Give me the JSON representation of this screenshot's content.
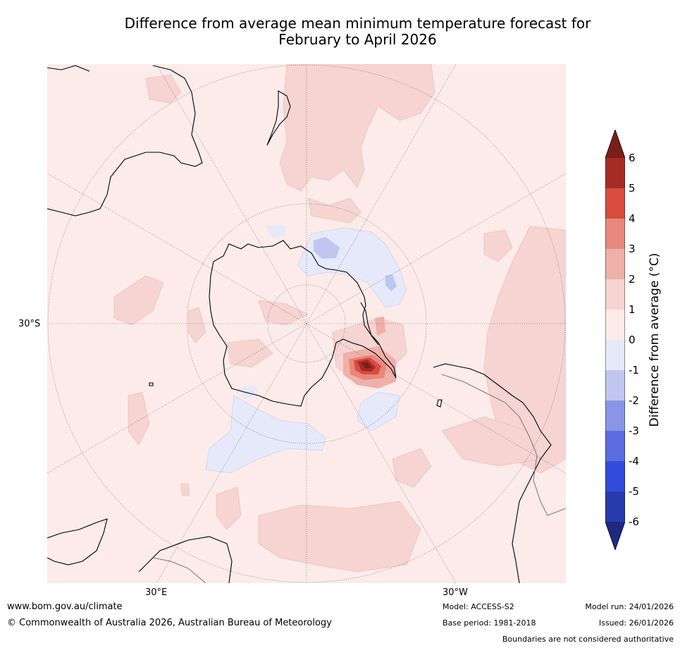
{
  "title": {
    "line1": "Difference from average mean minimum temperature forecast for",
    "line2": "February to April 2026"
  },
  "map": {
    "lat_label": "30°S",
    "lon_labels": [
      "30°E",
      "30°W"
    ],
    "projection": "south-polar-stereographic"
  },
  "colorbar": {
    "label": "Difference from average (°C)",
    "ticks": [
      "6",
      "5",
      "4",
      "3",
      "2",
      "1",
      "0",
      "-1",
      "-2",
      "-3",
      "-4",
      "-5",
      "-6"
    ],
    "colors": {
      "over": "#7a1e18",
      "5_6": "#a72b25",
      "4_5": "#d94c3f",
      "3_4": "#e8877d",
      "2_3": "#eeb0a9",
      "1_2": "#f5d4d1",
      "0_1": "#fcebe9",
      "m1_0": "#e6e9fa",
      "m2_m1": "#c0c6f0",
      "m3_m2": "#8996e8",
      "m4_m3": "#5a6de0",
      "m5_m4": "#2f4cdd",
      "m6_m5": "#283bad",
      "under": "#1e2a80"
    }
  },
  "footer": {
    "website": "www.bom.gov.au/climate",
    "copyright": "© Commonwealth of Australia 2026, Australian Bureau of Meteorology",
    "model": "Model: ACCESS-S2",
    "base_period": "Base period: 1981-2018",
    "model_run": "Model run: 24/01/2026",
    "issued": "Issued: 26/01/2026",
    "boundaries_note": "Boundaries are not considered authoritative"
  }
}
